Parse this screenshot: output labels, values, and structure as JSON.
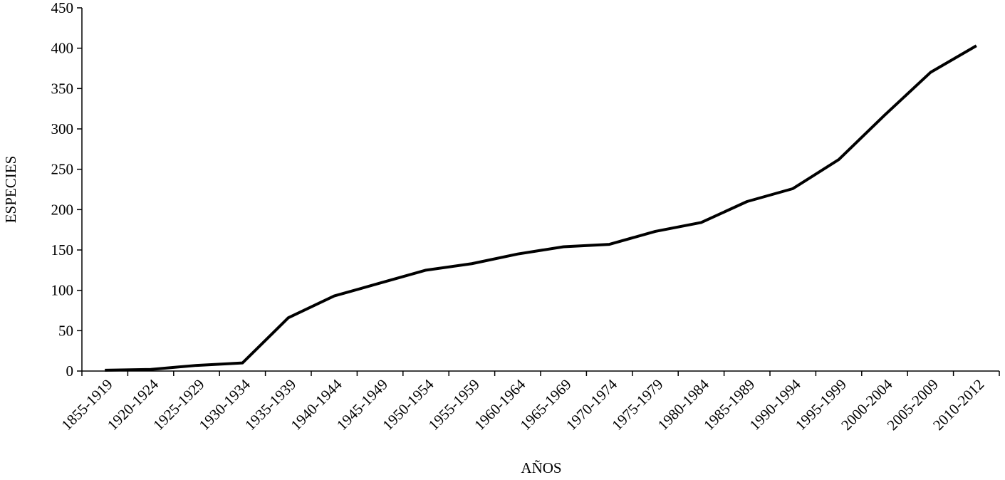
{
  "chart_data": {
    "type": "line",
    "x_label": "AÑOS",
    "y_label": "ESPECIES",
    "categories": [
      "1855-1919",
      "1920-1924",
      "1925-1929",
      "1930-1934",
      "1935-1939",
      "1940-1944",
      "1945-1949",
      "1950-1954",
      "1955-1959",
      "1960-1964",
      "1965-1969",
      "1970-1974",
      "1975-1979",
      "1980-1984",
      "1985-1989",
      "1990-1994",
      "1995-1999",
      "2000-2004",
      "2005-2009",
      "2010-2012"
    ],
    "values": [
      1,
      2,
      7,
      10,
      66,
      93,
      109,
      125,
      133,
      145,
      154,
      157,
      173,
      184,
      210,
      226,
      262,
      317,
      370,
      403
    ],
    "color": "#000000",
    "ylim": [
      0,
      450
    ],
    "yticks": [
      0,
      50,
      100,
      150,
      200,
      250,
      300,
      350,
      400,
      450
    ],
    "grid": false
  }
}
